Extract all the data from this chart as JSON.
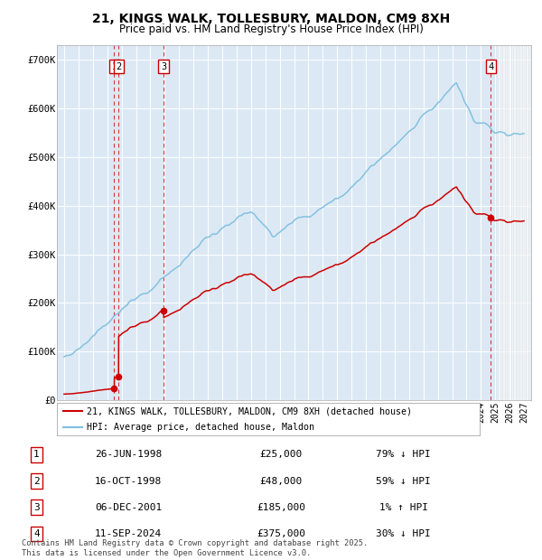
{
  "title_line1": "21, KINGS WALK, TOLLESBURY, MALDON, CM9 8XH",
  "title_line2": "Price paid vs. HM Land Registry's House Price Index (HPI)",
  "hpi_color": "#7fbfdf",
  "price_color": "#cc0000",
  "bg_color": "#dce9f5",
  "ylim": [
    0,
    730000
  ],
  "yticks": [
    0,
    100000,
    200000,
    300000,
    400000,
    500000,
    600000,
    700000
  ],
  "ytick_labels": [
    "£0",
    "£100K",
    "£200K",
    "£300K",
    "£400K",
    "£500K",
    "£600K",
    "£700K"
  ],
  "xlim_start": 1994.5,
  "xlim_end": 2027.5,
  "transactions": [
    {
      "num": 1,
      "date": "1998-06-26",
      "year": 1998.49,
      "price": 25000,
      "label": "1"
    },
    {
      "num": 2,
      "date": "1998-10-16",
      "year": 1998.79,
      "price": 48000,
      "label": "2"
    },
    {
      "num": 3,
      "date": "2001-12-06",
      "year": 2001.93,
      "price": 185000,
      "label": "3"
    },
    {
      "num": 4,
      "date": "2024-09-11",
      "year": 2024.7,
      "price": 375000,
      "label": "4"
    }
  ],
  "legend_line1": "21, KINGS WALK, TOLLESBURY, MALDON, CM9 8XH (detached house)",
  "legend_line2": "HPI: Average price, detached house, Maldon",
  "table_rows": [
    {
      "num": "1",
      "date": "26-JUN-1998",
      "price": "£25,000",
      "hpi": "79% ↓ HPI"
    },
    {
      "num": "2",
      "date": "16-OCT-1998",
      "price": "£48,000",
      "hpi": "59% ↓ HPI"
    },
    {
      "num": "3",
      "date": "06-DEC-2001",
      "price": "£185,000",
      "hpi": "1% ↑ HPI"
    },
    {
      "num": "4",
      "date": "11-SEP-2024",
      "price": "£375,000",
      "hpi": "30% ↓ HPI"
    }
  ],
  "footer": "Contains HM Land Registry data © Crown copyright and database right 2025.\nThis data is licensed under the Open Government Licence v3.0."
}
